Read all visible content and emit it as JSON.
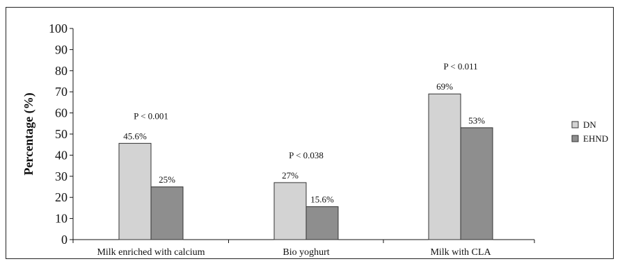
{
  "chart_data": {
    "type": "bar",
    "ylabel": "Percentage (%)",
    "xlabel": "",
    "ylim": [
      0,
      100
    ],
    "yticks": [
      0,
      10,
      20,
      30,
      40,
      50,
      60,
      70,
      80,
      90,
      100
    ],
    "categories": [
      "Milk enriched with calcium",
      "Bio yoghurt",
      "Milk with CLA"
    ],
    "series": [
      {
        "name": "DN",
        "values": [
          45.6,
          27,
          69
        ],
        "labels": [
          "45.6%",
          "27%",
          "69%"
        ],
        "color": "#d3d3d3"
      },
      {
        "name": "EHND",
        "values": [
          25,
          15.6,
          53
        ],
        "labels": [
          "25%",
          "15.6%",
          "53%"
        ],
        "color": "#8e8e8e"
      }
    ],
    "annotations": [
      "P < 0.001",
      "P < 0.038",
      "P < 0.011"
    ],
    "legend_position": "right",
    "grid": false
  }
}
